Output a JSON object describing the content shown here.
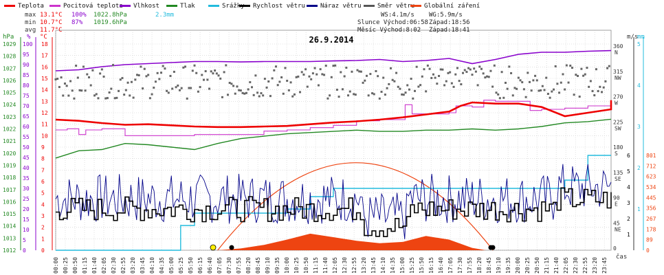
{
  "chart_data": {
    "type": "line",
    "title": "26.9.2014",
    "legend": [
      {
        "name": "Teplota",
        "color": "#ee0000"
      },
      {
        "name": "Pocitová teplota",
        "color": "#cc33cc"
      },
      {
        "name": "Vlhkost",
        "color": "#8800cc"
      },
      {
        "name": "Tlak",
        "color": "#228822"
      },
      {
        "name": "Srážky",
        "color": "#22bbdd"
      },
      {
        "name": "Rychlost větru",
        "color": "#000000"
      },
      {
        "name": "Náraz větru",
        "color": "#000088"
      },
      {
        "name": "Směr větru",
        "color": "#555555"
      },
      {
        "name": "Globální záření",
        "color": "#ee4411"
      }
    ],
    "stats": {
      "max_label": "max",
      "max_temp": "13.1°C",
      "max_hum": "100%",
      "max_press": "1022.8hPa",
      "max_rain": "2.3mm",
      "min_label": "min",
      "min_temp": "10.7°C",
      "min_hum": "87%",
      "min_press": "1019.6hPa",
      "avg_label": "avg",
      "avg_temp": "11.7°C"
    },
    "info": {
      "ws": "WS:4.1m/s",
      "wg": "WG:5.9m/s",
      "sun": "Slunce Východ:06:58",
      "sun_set": "Západ:18:56",
      "moon": "Měsíc  Východ:8:02",
      "moon_set": "Západ:18:41"
    },
    "axis_units": {
      "hpa": "hPa",
      "pct": "%",
      "degc": "°C",
      "ms": "m/s",
      "mm": "mm",
      "time": "čas"
    },
    "left_axes": {
      "hpa": [
        "1029",
        "1028",
        "1027",
        "1026",
        "1025",
        "1024",
        "1023",
        "1022",
        "1021",
        "1020",
        "1019",
        "1018",
        "1017",
        "1016",
        "1015",
        "1014",
        "1013",
        "1012"
      ],
      "pct": [
        "100",
        "95",
        "90",
        "85",
        "80",
        "75",
        "70",
        "65",
        "60",
        "55",
        "50",
        "45",
        "40",
        "35",
        "30",
        "25",
        "20",
        "15",
        "10",
        "5",
        "0"
      ],
      "degc": [
        "18",
        "17",
        "16",
        "15",
        "14",
        "13",
        "12",
        "11",
        "10",
        "9",
        "8",
        "7",
        "6",
        "5",
        "4",
        "3",
        "2",
        "1",
        "0"
      ]
    },
    "right_axes": {
      "direction": [
        {
          "deg": "360",
          "dir": "N"
        },
        {
          "deg": "315",
          "dir": "NW"
        },
        {
          "deg": "270",
          "dir": "W"
        },
        {
          "deg": "225",
          "dir": "SW"
        },
        {
          "deg": "180",
          "dir": "S"
        },
        {
          "deg": "135",
          "dir": "SE"
        },
        {
          "deg": "90",
          "dir": "E"
        },
        {
          "deg": "45",
          "dir": "NE"
        },
        {
          "deg": "0",
          "dir": ""
        }
      ],
      "ms": [
        "6",
        "5",
        "4",
        "3",
        "2",
        "1"
      ],
      "mm": [
        "5",
        "4",
        "3",
        "2",
        "1"
      ],
      "radiation": [
        "801",
        "712",
        "623",
        "534",
        "445",
        "356",
        "267",
        "178",
        "89",
        "0"
      ]
    },
    "x_ticks": [
      "00:00",
      "00:25",
      "00:50",
      "01:15",
      "01:40",
      "02:05",
      "02:30",
      "02:55",
      "03:20",
      "03:45",
      "04:10",
      "04:35",
      "05:00",
      "05:25",
      "05:50",
      "06:15",
      "06:40",
      "07:05",
      "07:30",
      "07:55",
      "08:20",
      "08:45",
      "09:10",
      "09:35",
      "10:00",
      "10:25",
      "10:50",
      "11:15",
      "11:40",
      "12:05",
      "12:30",
      "12:55",
      "13:20",
      "13:45",
      "14:10",
      "14:35",
      "15:00",
      "15:25",
      "15:50",
      "16:15",
      "16:40",
      "17:05",
      "17:30",
      "17:55",
      "18:20",
      "18:45",
      "19:10",
      "19:35",
      "20:00",
      "20:25",
      "20:50",
      "21:15",
      "21:40",
      "22:05",
      "22:30",
      "22:55",
      "23:20",
      "23:45"
    ],
    "ylim_temp": [
      0,
      18
    ],
    "ylim_humidity": [
      0,
      100
    ],
    "ylim_pressure": [
      1012,
      1029
    ],
    "ylim_wind": [
      0,
      6
    ],
    "ylim_radiation": [
      0,
      801
    ],
    "series_points": {
      "temperature": [
        [
          0,
          11.4
        ],
        [
          1,
          11.3
        ],
        [
          2,
          11.1
        ],
        [
          3,
          10.95
        ],
        [
          4,
          11.0
        ],
        [
          5,
          10.9
        ],
        [
          6,
          10.8
        ],
        [
          7,
          10.75
        ],
        [
          8,
          10.75
        ],
        [
          9,
          10.8
        ],
        [
          10,
          10.85
        ],
        [
          11,
          11.0
        ],
        [
          12,
          11.15
        ],
        [
          13,
          11.25
        ],
        [
          14,
          11.4
        ],
        [
          15,
          11.6
        ],
        [
          16,
          11.85
        ],
        [
          17,
          12.1
        ],
        [
          17.5,
          12.6
        ],
        [
          18,
          12.9
        ],
        [
          19,
          12.8
        ],
        [
          20,
          12.8
        ],
        [
          21,
          12.5
        ],
        [
          22,
          11.7
        ],
        [
          23,
          12.0
        ],
        [
          24,
          12.3
        ],
        [
          24,
          12.7
        ],
        [
          24,
          13.1
        ]
      ],
      "feels_like": [
        [
          0,
          10.5
        ],
        [
          0.5,
          10.6
        ],
        [
          1,
          10.1
        ],
        [
          1.3,
          10.5
        ],
        [
          2,
          10.6
        ],
        [
          3,
          10.0
        ],
        [
          4,
          10.0
        ],
        [
          5,
          10.0
        ],
        [
          6,
          10.1
        ],
        [
          7,
          10.1
        ],
        [
          8,
          10.1
        ],
        [
          9,
          10.4
        ],
        [
          10,
          10.5
        ],
        [
          11,
          10.7
        ],
        [
          12,
          10.9
        ],
        [
          13,
          11.3
        ],
        [
          14,
          11.4
        ],
        [
          14.8,
          11.4
        ],
        [
          15.1,
          12.7
        ],
        [
          15.4,
          11.9
        ],
        [
          16,
          11.9
        ],
        [
          17,
          12.0
        ],
        [
          17.3,
          12.6
        ],
        [
          18,
          12.5
        ],
        [
          18.5,
          13.1
        ],
        [
          19,
          13.0
        ],
        [
          20,
          13.0
        ],
        [
          20.5,
          12.2
        ],
        [
          21,
          12.3
        ],
        [
          22,
          12.4
        ],
        [
          23,
          12.6
        ],
        [
          24,
          12.8
        ]
      ],
      "humidity": [
        [
          0,
          87
        ],
        [
          1,
          87.5
        ],
        [
          2,
          89
        ],
        [
          3,
          90
        ],
        [
          4,
          90.5
        ],
        [
          5,
          91
        ],
        [
          6,
          91.5
        ],
        [
          7,
          91.5
        ],
        [
          8,
          91.3
        ],
        [
          9,
          91.5
        ],
        [
          10,
          91.5
        ],
        [
          11,
          91.5
        ],
        [
          12,
          91.8
        ],
        [
          13,
          92
        ],
        [
          14,
          92.5
        ],
        [
          15,
          91.5
        ],
        [
          16,
          92
        ],
        [
          17,
          93
        ],
        [
          18,
          90.5
        ],
        [
          19,
          92.5
        ],
        [
          20,
          95
        ],
        [
          21,
          96
        ],
        [
          22,
          96
        ],
        [
          23,
          96.5
        ],
        [
          24,
          96.8
        ]
      ],
      "pressure": [
        [
          0,
          1019.6
        ],
        [
          1,
          1020.2
        ],
        [
          2,
          1020.3
        ],
        [
          3,
          1020.8
        ],
        [
          4,
          1020.7
        ],
        [
          5,
          1020.5
        ],
        [
          6,
          1020.3
        ],
        [
          7,
          1020.8
        ],
        [
          8,
          1021.2
        ],
        [
          9,
          1021.4
        ],
        [
          10,
          1021.6
        ],
        [
          11,
          1021.7
        ],
        [
          12,
          1021.8
        ],
        [
          13,
          1021.9
        ],
        [
          14,
          1021.8
        ],
        [
          15,
          1021.8
        ],
        [
          16,
          1021.9
        ],
        [
          17,
          1021.9
        ],
        [
          18,
          1022.0
        ],
        [
          19,
          1021.9
        ],
        [
          20,
          1022.0
        ],
        [
          21,
          1022.2
        ],
        [
          22,
          1022.5
        ],
        [
          23,
          1022.6
        ],
        [
          24,
          1022.8
        ]
      ],
      "rain": [
        [
          0,
          0
        ],
        [
          4.8,
          0
        ],
        [
          5.4,
          0.6
        ],
        [
          6,
          0.9
        ],
        [
          8,
          0.9
        ],
        [
          10,
          1.0
        ],
        [
          11,
          1.3
        ],
        [
          11.5,
          1.3
        ],
        [
          12,
          1.5
        ],
        [
          16,
          1.5
        ],
        [
          20,
          1.5
        ],
        [
          22,
          1.7
        ],
        [
          23,
          2.3
        ],
        [
          24,
          2.3
        ]
      ],
      "radiation": [
        [
          7.0,
          0
        ],
        [
          8.0,
          15
        ],
        [
          9.0,
          45
        ],
        [
          10.0,
          90
        ],
        [
          11.0,
          140
        ],
        [
          12.0,
          110
        ],
        [
          13.0,
          80
        ],
        [
          14.0,
          60
        ],
        [
          15.0,
          70
        ],
        [
          16.0,
          120
        ],
        [
          17.0,
          90
        ],
        [
          18.0,
          20
        ],
        [
          18.6,
          0
        ]
      ],
      "sun_curve_peak": {
        "time": 13.0,
        "value": 712
      }
    }
  }
}
